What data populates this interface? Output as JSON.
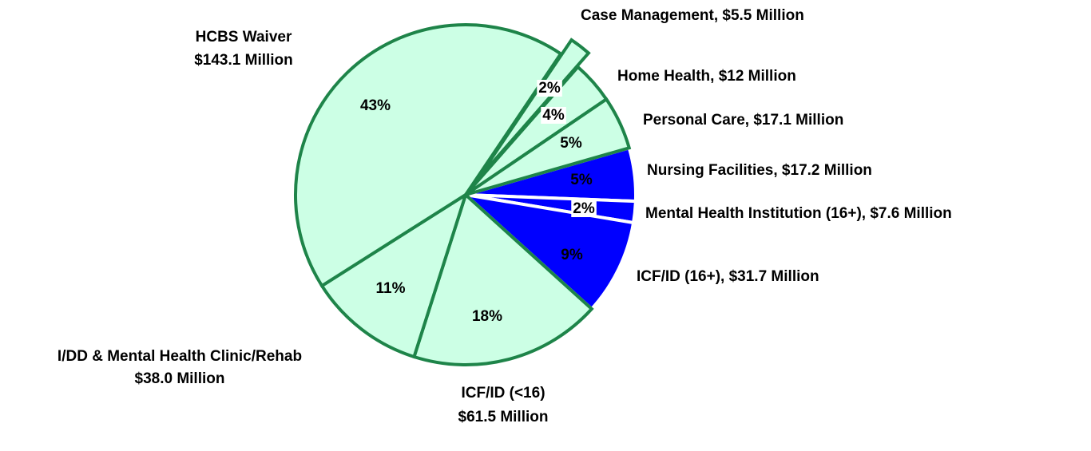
{
  "chart_data": {
    "type": "pie",
    "categories": [
      [
        "Nursing Facilities, $17.2 Million"
      ],
      [
        "Mental Health Institution (16+), $7.6 Million"
      ],
      [
        "ICF/ID (16+), $31.7 Million"
      ],
      [
        "ICF/ID (<16)",
        "$61.5 Million"
      ],
      [
        "I/DD & Mental Health Clinic/Rehab",
        "$38.0 Million"
      ],
      [
        "HCBS Waiver",
        "$143.1 Million"
      ],
      [
        "Case Management, $5.5 Million"
      ],
      [
        "Home Health, $12 Million"
      ],
      [
        "Personal Care, $17.1 Million"
      ]
    ],
    "values": [
      5,
      2,
      9,
      18,
      11,
      43,
      2,
      4,
      5
    ],
    "value_labels": [
      "5%",
      "2%",
      "9%",
      "18%",
      "11%",
      "43%",
      "2%",
      "4%",
      "5%"
    ],
    "colors": [
      "#0000ff",
      "#0000ff",
      "#0000ff",
      "#ccffe5",
      "#ccffe5",
      "#ccffe5",
      "#ccffe5",
      "#ccffe5",
      "#ccffe5"
    ],
    "exploded": [
      false,
      false,
      false,
      false,
      false,
      false,
      true,
      false,
      false
    ]
  }
}
